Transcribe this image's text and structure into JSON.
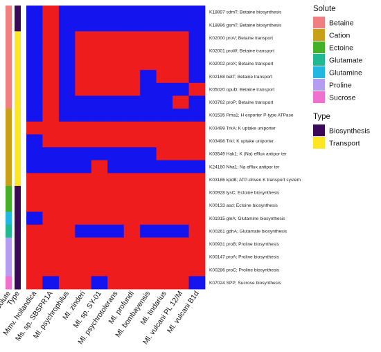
{
  "chart_data": {
    "type": "heatmap",
    "colors": {
      "present": "#ee1c1c",
      "absent": "#1414ee"
    },
    "columns": [
      "Mmv. hollandica",
      "Ms. sp. SBSPR1A",
      "Ml. psychrophilus",
      "Ml. zinderi",
      "Ml. sp. SY-01",
      "Ml. psychrotolerans",
      "Ml. profundi",
      "Ml. bombayensis",
      "Ml. tindarius",
      "Ml. vulcani PL 12/M",
      "Ml. vulcani B1d"
    ],
    "rows": [
      {
        "label": "K18897 sdmT; Betaine biosynthesis",
        "solute": "Betaine",
        "type": "Biosynthesis",
        "values": [
          0,
          1,
          0,
          0,
          0,
          0,
          0,
          0,
          0,
          0,
          0
        ]
      },
      {
        "label": "K18896 gsmT; Betaine biosynthesis",
        "solute": "Betaine",
        "type": "Biosynthesis",
        "values": [
          0,
          1,
          0,
          0,
          0,
          0,
          0,
          0,
          0,
          0,
          0
        ]
      },
      {
        "label": "K02000 proV; Betaine transport",
        "solute": "Betaine",
        "type": "Transport",
        "values": [
          0,
          1,
          0,
          1,
          1,
          1,
          1,
          1,
          1,
          1,
          0
        ]
      },
      {
        "label": "K02001 proW; Betaine transport",
        "solute": "Betaine",
        "type": "Transport",
        "values": [
          0,
          1,
          0,
          1,
          1,
          1,
          1,
          1,
          1,
          1,
          0
        ]
      },
      {
        "label": "K02002 proX; Betaine transport",
        "solute": "Betaine",
        "type": "Transport",
        "values": [
          0,
          1,
          0,
          1,
          1,
          1,
          1,
          1,
          1,
          1,
          0
        ]
      },
      {
        "label": "K02168 betT; Betaine transport",
        "solute": "Betaine",
        "type": "Transport",
        "values": [
          0,
          1,
          0,
          1,
          1,
          1,
          1,
          0,
          1,
          1,
          0
        ]
      },
      {
        "label": "K05020 opuD; Betaine transport",
        "solute": "Betaine",
        "type": "Transport",
        "values": [
          0,
          1,
          0,
          1,
          1,
          1,
          1,
          0,
          0,
          0,
          1
        ]
      },
      {
        "label": "K03762 proP; Betaine transport",
        "solute": "Betaine",
        "type": "Transport",
        "values": [
          0,
          1,
          0,
          0,
          0,
          0,
          0,
          0,
          0,
          1,
          0
        ]
      },
      {
        "label": "K01535 Pma1; H exporter P-type ATPase",
        "solute": "Cation",
        "type": "Transport",
        "values": [
          0,
          1,
          0,
          0,
          0,
          0,
          0,
          0,
          0,
          0,
          0
        ]
      },
      {
        "label": "K03499 TrkA; K uptake uniporter",
        "solute": "Cation",
        "type": "Transport",
        "values": [
          1,
          1,
          1,
          1,
          1,
          1,
          1,
          1,
          1,
          1,
          1
        ]
      },
      {
        "label": "K03498 TrkI; K uptake uniporter",
        "solute": "Cation",
        "type": "Transport",
        "values": [
          0,
          1,
          1,
          1,
          1,
          1,
          1,
          1,
          1,
          1,
          1
        ]
      },
      {
        "label": "K03549 Hak1; K (Na) efflux antipor ter",
        "solute": "Cation",
        "type": "Transport",
        "values": [
          0,
          0,
          0,
          0,
          0,
          0,
          0,
          0,
          1,
          1,
          1
        ]
      },
      {
        "label": "K24160 Nha1; Na efflux antipor ter",
        "solute": "Cation",
        "type": "Transport",
        "values": [
          0,
          0,
          0,
          0,
          1,
          0,
          0,
          0,
          0,
          0,
          0
        ]
      },
      {
        "label": "K03186 kpdB; ATP-driven K transport system",
        "solute": "Cation",
        "type": "Transport",
        "values": [
          1,
          1,
          1,
          1,
          1,
          1,
          1,
          1,
          1,
          1,
          1
        ]
      },
      {
        "label": "K00928 lysC; Ectoine biosynthesis",
        "solute": "Ectoine",
        "type": "Biosynthesis",
        "values": [
          1,
          1,
          1,
          1,
          1,
          1,
          1,
          1,
          1,
          1,
          1
        ]
      },
      {
        "label": "K00133 asd; Ectoine biosynthesis",
        "solute": "Ectoine",
        "type": "Biosynthesis",
        "values": [
          1,
          1,
          1,
          1,
          1,
          1,
          1,
          1,
          1,
          1,
          1
        ]
      },
      {
        "label": "K01915 glnA; Glutamine biosynthesis",
        "solute": "Glutamine",
        "type": "Biosynthesis",
        "values": [
          0,
          1,
          1,
          1,
          1,
          1,
          1,
          1,
          1,
          1,
          1
        ]
      },
      {
        "label": "K00261 gdhA; Glutamate biosynthesis",
        "solute": "Glutamate",
        "type": "Biosynthesis",
        "values": [
          1,
          1,
          1,
          0,
          0,
          0,
          1,
          0,
          0,
          0,
          1
        ]
      },
      {
        "label": "K00931 proB; Proline biosynthesis",
        "solute": "Proline",
        "type": "Biosynthesis",
        "values": [
          1,
          1,
          1,
          1,
          1,
          1,
          1,
          1,
          1,
          1,
          1
        ]
      },
      {
        "label": "K00147 proA; Proline biosynthesis",
        "solute": "Proline",
        "type": "Biosynthesis",
        "values": [
          1,
          1,
          1,
          1,
          1,
          1,
          1,
          1,
          1,
          1,
          1
        ]
      },
      {
        "label": "K00286 proC; Proline biosynthesis",
        "solute": "Proline",
        "type": "Biosynthesis",
        "values": [
          1,
          1,
          1,
          1,
          1,
          1,
          1,
          1,
          1,
          1,
          1
        ]
      },
      {
        "label": "K07024 SPP; Sucrose biosynthesis",
        "solute": "Sucrose",
        "type": "Biosynthesis",
        "values": [
          1,
          0,
          1,
          1,
          0,
          1,
          1,
          1,
          1,
          1,
          0
        ]
      }
    ],
    "side_titles": {
      "solute": "Solute",
      "type": "Type"
    },
    "legend": {
      "solute": {
        "title": "Solute",
        "entries": [
          {
            "label": "Betaine",
            "color": "#f08080"
          },
          {
            "label": "Cation",
            "color": "#c8a018"
          },
          {
            "label": "Ectoine",
            "color": "#44b028"
          },
          {
            "label": "Glutamate",
            "color": "#20b890"
          },
          {
            "label": "Glutamine",
            "color": "#20b8e0"
          },
          {
            "label": "Proline",
            "color": "#b49cf0"
          },
          {
            "label": "Sucrose",
            "color": "#f070d0"
          }
        ]
      },
      "type": {
        "title": "Type",
        "entries": [
          {
            "label": "Biosynthesis",
            "color": "#3a0a58"
          },
          {
            "label": "Transport",
            "color": "#fde725"
          }
        ]
      }
    }
  }
}
